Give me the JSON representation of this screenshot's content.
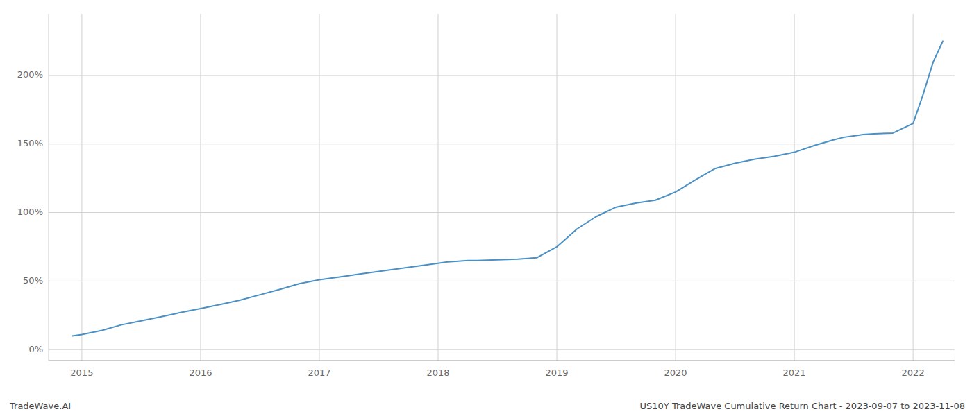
{
  "chart_data": {
    "type": "line",
    "title": "US10Y TradeWave Cumulative Return Chart - 2023-09-07 to 2023-11-08",
    "annotations": [
      "TradeWave.AI"
    ],
    "color": "#4a90c4",
    "grid": true,
    "x": [
      2014.92,
      2015.0,
      2015.17,
      2015.33,
      2015.5,
      2015.67,
      2015.83,
      2016.0,
      2016.17,
      2016.33,
      2016.5,
      2016.67,
      2016.83,
      2017.0,
      2017.17,
      2017.33,
      2017.5,
      2017.67,
      2017.83,
      2018.0,
      2018.08,
      2018.17,
      2018.25,
      2018.33,
      2018.5,
      2018.67,
      2018.83,
      2019.0,
      2019.17,
      2019.33,
      2019.5,
      2019.67,
      2019.83,
      2020.0,
      2020.17,
      2020.33,
      2020.5,
      2020.67,
      2020.83,
      2021.0,
      2021.17,
      2021.33,
      2021.42,
      2021.5,
      2021.58,
      2021.67,
      2021.83,
      2022.0,
      2022.08,
      2022.17,
      2022.25
    ],
    "values": [
      10,
      11,
      14,
      18,
      21,
      24,
      27,
      30,
      33,
      36,
      40,
      44,
      48,
      51,
      53,
      55,
      57,
      59,
      61,
      63,
      64,
      64.5,
      65,
      65,
      65.5,
      66,
      67,
      75,
      88,
      97,
      104,
      107,
      109,
      115,
      124,
      132,
      136,
      139,
      141,
      144,
      149,
      153,
      155,
      156,
      157,
      157.5,
      158,
      165,
      185,
      210,
      225
    ],
    "xlim": [
      2014.72,
      2022.35
    ],
    "xticks": [
      2015,
      2016,
      2017,
      2018,
      2019,
      2020,
      2021,
      2022
    ],
    "ylim": [
      -8,
      245
    ],
    "yticks": [
      {
        "value": 0,
        "label": "0%"
      },
      {
        "value": 50,
        "label": "50%"
      },
      {
        "value": 100,
        "label": "100%"
      },
      {
        "value": 150,
        "label": "150%"
      },
      {
        "value": 200,
        "label": "200%"
      }
    ]
  }
}
